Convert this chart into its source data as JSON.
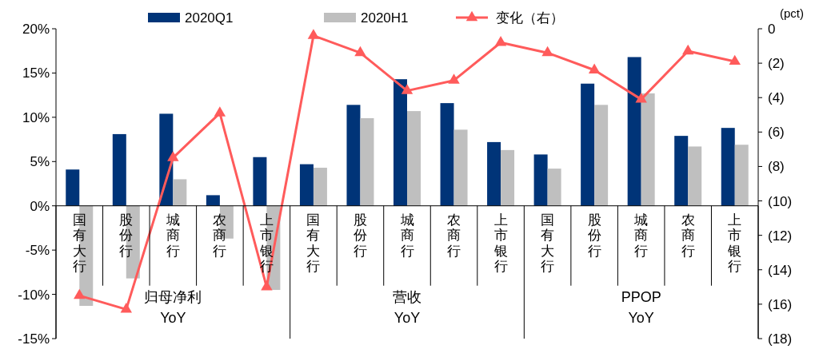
{
  "chart_data": {
    "type": "bar",
    "categories": [
      "国有大行",
      "股份行",
      "城商行",
      "农商行",
      "上市银行",
      "国有大行",
      "股份行",
      "城商行",
      "农商行",
      "上市银行",
      "国有大行",
      "股份行",
      "城商行",
      "农商行",
      "上市银行"
    ],
    "series": [
      {
        "name": "2020Q1",
        "color": "#003478",
        "values": [
          4.1,
          8.1,
          10.4,
          1.2,
          5.5,
          4.7,
          11.4,
          14.3,
          11.6,
          7.2,
          5.8,
          13.8,
          16.8,
          7.9,
          8.8
        ]
      },
      {
        "name": "2020H1",
        "color": "#bfbfbf",
        "values": [
          -11.3,
          -8.2,
          3.0,
          -3.7,
          -9.5,
          4.3,
          9.9,
          10.7,
          8.6,
          6.3,
          4.2,
          11.4,
          12.7,
          6.7,
          6.9
        ]
      },
      {
        "name": "变化（右）",
        "type": "line",
        "axis": "y2",
        "color": "#ff5b5b",
        "marker": "triangle",
        "values": [
          15.5,
          16.3,
          7.5,
          4.9,
          15.0,
          0.4,
          1.4,
          3.6,
          3.0,
          0.8,
          1.4,
          2.4,
          4.1,
          1.3,
          1.9
        ]
      }
    ],
    "ylim": [
      -15,
      20
    ],
    "yticks": [
      {
        "value": -15,
        "label": "-15%"
      },
      {
        "value": -10,
        "label": "-10%"
      },
      {
        "value": -5,
        "label": "-5%"
      },
      {
        "value": 0,
        "label": "0%"
      },
      {
        "value": 5,
        "label": "5%"
      },
      {
        "value": 10,
        "label": "10%"
      },
      {
        "value": 15,
        "label": "15%"
      },
      {
        "value": 20,
        "label": "20%"
      }
    ],
    "y2lim": [
      18,
      0
    ],
    "y2ticks": [
      0,
      {
        "value": 2,
        "label": "(2)"
      },
      {
        "value": 4,
        "label": "(4)"
      },
      {
        "value": 6,
        "label": "(6)"
      },
      {
        "value": 8,
        "label": "(8)"
      },
      {
        "value": 10,
        "label": "(10)"
      },
      {
        "value": 12,
        "label": "(12)"
      },
      {
        "value": 14,
        "label": "(14)"
      },
      {
        "value": 16,
        "label": "(16)"
      },
      {
        "value": 18,
        "label": "(18)"
      }
    ],
    "y2label": "(pct)",
    "annotations": [
      "归母净利\nYoY",
      "营收\nYoY",
      "PPOP\nYoY"
    ],
    "legend": "top",
    "grid": false
  }
}
